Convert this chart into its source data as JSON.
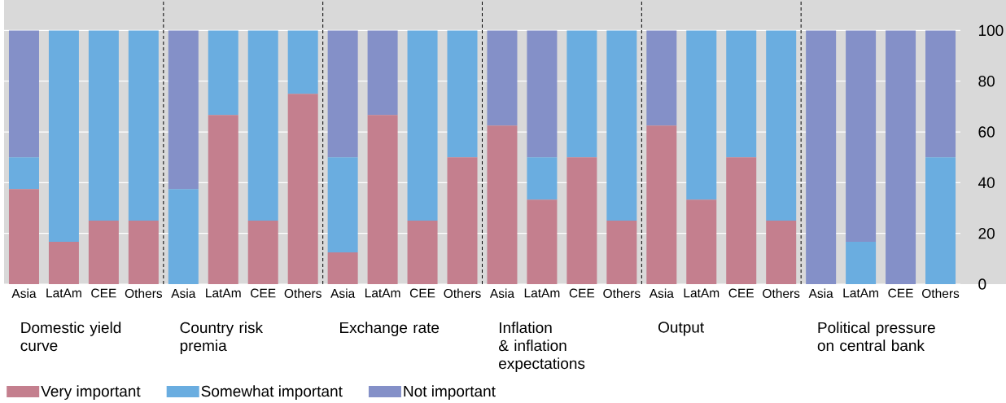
{
  "chart_data": {
    "type": "bar",
    "stacked": true,
    "categories": [
      "Asia",
      "LatAm",
      "CEE",
      "Others",
      "Asia",
      "LatAm",
      "CEE",
      "Others",
      "Asia",
      "LatAm",
      "CEE",
      "Others",
      "Asia",
      "LatAm",
      "CEE",
      "Others",
      "Asia",
      "LatAm",
      "CEE",
      "Others",
      "Asia",
      "LatAm",
      "CEE",
      "Others"
    ],
    "series": [
      {
        "name": "Very important",
        "color": "#c47f8e",
        "values": [
          37.5,
          16.7,
          25,
          25,
          0,
          66.7,
          25,
          75,
          12.5,
          66.7,
          25,
          50,
          62.5,
          33.3,
          50,
          25,
          62.5,
          33.3,
          50,
          25,
          0,
          0,
          0,
          0
        ]
      },
      {
        "name": "Somewhat important",
        "color": "#6aade0",
        "values": [
          12.5,
          83.3,
          75,
          75,
          37.5,
          33.3,
          75,
          25,
          37.5,
          0,
          75,
          50,
          0,
          16.7,
          50,
          75,
          0,
          66.7,
          50,
          75,
          0,
          16.7,
          0,
          50
        ]
      },
      {
        "name": "Not important",
        "color": "#8490c8",
        "values": [
          50,
          0,
          0,
          0,
          62.5,
          0,
          0,
          0,
          50,
          33.3,
          0,
          0,
          37.5,
          50,
          0,
          0,
          37.5,
          0,
          0,
          0,
          100,
          83.3,
          100,
          50
        ]
      }
    ],
    "ylim": [
      0,
      112
    ],
    "yticks": [
      0,
      20,
      40,
      60,
      80,
      100
    ],
    "grid": "y",
    "legend": "bottom",
    "annotations": [
      "Domestic yield curve",
      "Country risk premia",
      "Exchange rate",
      "Inflation & inflation expectations",
      "Output",
      "Political pressure on central bank"
    ]
  }
}
